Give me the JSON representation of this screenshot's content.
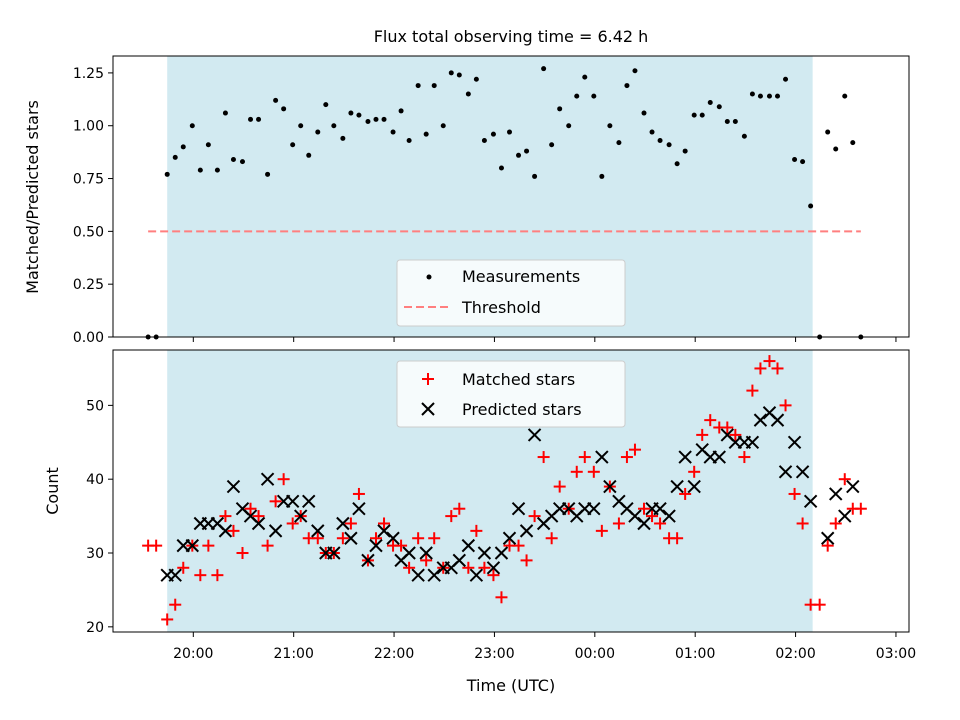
{
  "chart_data": [
    {
      "type": "scatter",
      "title": "Flux total observing time = 6.42 h",
      "xlabel": "",
      "ylabel": "Matched/Predicted stars",
      "x_unit": "UTC hours since 00:00 of first night (times after midnight are +24)",
      "xlim": [
        19.2,
        27.13
      ],
      "ylim": [
        0.0,
        1.33
      ],
      "yticks": [
        "0.00",
        "0.25",
        "0.50",
        "0.75",
        "1.00",
        "1.25"
      ],
      "grid": false,
      "legend_position": "lower-center",
      "shaded_interval": {
        "x0": 19.74,
        "x1": 26.17,
        "color": "#add8e6"
      },
      "threshold": {
        "y": 0.5,
        "x0": 19.55,
        "x1": 26.65,
        "name": "Threshold",
        "color": "#ff7f7f",
        "style": "dashed"
      },
      "series": [
        {
          "name": "Measurements",
          "color": "#000000",
          "marker": "dot",
          "points": [
            [
              19.55,
              0.0
            ],
            [
              19.63,
              0.0
            ],
            [
              19.74,
              0.77
            ],
            [
              19.82,
              0.85
            ],
            [
              19.9,
              0.9
            ],
            [
              19.99,
              1.0
            ],
            [
              20.07,
              0.79
            ],
            [
              20.15,
              0.91
            ],
            [
              20.24,
              0.79
            ],
            [
              20.32,
              1.06
            ],
            [
              20.4,
              0.84
            ],
            [
              20.49,
              0.83
            ],
            [
              20.57,
              1.03
            ],
            [
              20.65,
              1.03
            ],
            [
              20.74,
              0.77
            ],
            [
              20.82,
              1.12
            ],
            [
              20.9,
              1.08
            ],
            [
              20.99,
              0.91
            ],
            [
              21.07,
              1.0
            ],
            [
              21.15,
              0.86
            ],
            [
              21.24,
              0.97
            ],
            [
              21.32,
              1.1
            ],
            [
              21.4,
              1.0
            ],
            [
              21.49,
              0.94
            ],
            [
              21.57,
              1.06
            ],
            [
              21.65,
              1.05
            ],
            [
              21.74,
              1.02
            ],
            [
              21.82,
              1.03
            ],
            [
              21.9,
              1.03
            ],
            [
              21.99,
              0.97
            ],
            [
              22.07,
              1.07
            ],
            [
              22.15,
              0.93
            ],
            [
              22.24,
              1.19
            ],
            [
              22.32,
              0.96
            ],
            [
              22.4,
              1.19
            ],
            [
              22.49,
              1.0
            ],
            [
              22.57,
              1.25
            ],
            [
              22.65,
              1.24
            ],
            [
              22.74,
              1.15
            ],
            [
              22.82,
              1.22
            ],
            [
              22.9,
              0.93
            ],
            [
              22.99,
              0.96
            ],
            [
              23.07,
              0.8
            ],
            [
              23.15,
              0.97
            ],
            [
              23.24,
              0.86
            ],
            [
              23.32,
              0.88
            ],
            [
              23.4,
              0.76
            ],
            [
              23.49,
              1.27
            ],
            [
              23.57,
              0.91
            ],
            [
              23.65,
              1.08
            ],
            [
              23.74,
              1.0
            ],
            [
              23.82,
              1.14
            ],
            [
              23.9,
              1.23
            ],
            [
              23.99,
              1.14
            ],
            [
              24.07,
              0.76
            ],
            [
              24.15,
              1.0
            ],
            [
              24.24,
              0.92
            ],
            [
              24.32,
              1.19
            ],
            [
              24.4,
              1.26
            ],
            [
              24.49,
              1.06
            ],
            [
              24.57,
              0.97
            ],
            [
              24.65,
              0.93
            ],
            [
              24.74,
              0.91
            ],
            [
              24.82,
              0.82
            ],
            [
              24.9,
              0.88
            ],
            [
              24.99,
              1.05
            ],
            [
              25.07,
              1.05
            ],
            [
              25.15,
              1.11
            ],
            [
              25.24,
              1.09
            ],
            [
              25.32,
              1.02
            ],
            [
              25.4,
              1.02
            ],
            [
              25.49,
              0.95
            ],
            [
              25.57,
              1.15
            ],
            [
              25.65,
              1.14
            ],
            [
              25.74,
              1.14
            ],
            [
              25.82,
              1.14
            ],
            [
              25.9,
              1.22
            ],
            [
              25.99,
              0.84
            ],
            [
              26.07,
              0.83
            ],
            [
              26.15,
              0.62
            ],
            [
              26.24,
              0.0
            ],
            [
              26.32,
              0.97
            ],
            [
              26.4,
              0.89
            ],
            [
              26.49,
              1.14
            ],
            [
              26.57,
              0.92
            ],
            [
              26.65,
              0.0
            ]
          ]
        }
      ]
    },
    {
      "type": "scatter",
      "title": "",
      "xlabel": "Time (UTC)",
      "ylabel": "Count",
      "x_unit": "UTC hours since 00:00 of first night (times after midnight are +24)",
      "xlim": [
        19.2,
        27.13
      ],
      "ylim": [
        19.3,
        57.5
      ],
      "yticks": [
        "20",
        "30",
        "40",
        "50"
      ],
      "xticks": [
        "20:00",
        "21:00",
        "22:00",
        "23:00",
        "00:00",
        "01:00",
        "02:00",
        "03:00"
      ],
      "grid": false,
      "legend_position": "upper-center",
      "shaded_interval": {
        "x0": 19.74,
        "x1": 26.17,
        "color": "#add8e6"
      },
      "series": [
        {
          "name": "Matched stars",
          "color": "#ff0000",
          "marker": "plus",
          "points": [
            [
              19.55,
              31
            ],
            [
              19.63,
              31
            ],
            [
              19.74,
              21
            ],
            [
              19.82,
              23
            ],
            [
              19.9,
              28
            ],
            [
              19.99,
              31
            ],
            [
              20.07,
              27
            ],
            [
              20.15,
              31
            ],
            [
              20.24,
              27
            ],
            [
              20.32,
              35
            ],
            [
              20.4,
              33
            ],
            [
              20.49,
              30
            ],
            [
              20.57,
              36
            ],
            [
              20.65,
              35
            ],
            [
              20.74,
              31
            ],
            [
              20.82,
              37
            ],
            [
              20.9,
              40
            ],
            [
              20.99,
              34
            ],
            [
              21.07,
              35
            ],
            [
              21.15,
              32
            ],
            [
              21.24,
              32
            ],
            [
              21.32,
              30
            ],
            [
              21.4,
              30
            ],
            [
              21.49,
              32
            ],
            [
              21.57,
              34
            ],
            [
              21.65,
              38
            ],
            [
              21.74,
              29
            ],
            [
              21.82,
              32
            ],
            [
              21.9,
              34
            ],
            [
              21.99,
              31
            ],
            [
              22.07,
              31
            ],
            [
              22.15,
              28
            ],
            [
              22.24,
              32
            ],
            [
              22.32,
              29
            ],
            [
              22.4,
              32
            ],
            [
              22.49,
              28
            ],
            [
              22.57,
              35
            ],
            [
              22.65,
              36
            ],
            [
              22.74,
              28
            ],
            [
              22.82,
              33
            ],
            [
              22.9,
              28
            ],
            [
              22.99,
              27
            ],
            [
              23.07,
              24
            ],
            [
              23.15,
              31
            ],
            [
              23.24,
              31
            ],
            [
              23.32,
              29
            ],
            [
              23.4,
              35
            ],
            [
              23.49,
              43
            ],
            [
              23.57,
              32
            ],
            [
              23.65,
              39
            ],
            [
              23.74,
              36
            ],
            [
              23.82,
              41
            ],
            [
              23.9,
              43
            ],
            [
              23.99,
              41
            ],
            [
              24.07,
              33
            ],
            [
              24.15,
              39
            ],
            [
              24.24,
              34
            ],
            [
              24.32,
              43
            ],
            [
              24.4,
              44
            ],
            [
              24.49,
              36
            ],
            [
              24.57,
              35
            ],
            [
              24.65,
              34
            ],
            [
              24.74,
              32
            ],
            [
              24.82,
              32
            ],
            [
              24.9,
              38
            ],
            [
              24.99,
              41
            ],
            [
              25.07,
              46
            ],
            [
              25.15,
              48
            ],
            [
              25.24,
              47
            ],
            [
              25.32,
              47
            ],
            [
              25.4,
              46
            ],
            [
              25.49,
              43
            ],
            [
              25.57,
              52
            ],
            [
              25.65,
              55
            ],
            [
              25.74,
              56
            ],
            [
              25.82,
              55
            ],
            [
              25.9,
              50
            ],
            [
              25.99,
              38
            ],
            [
              26.07,
              34
            ],
            [
              26.15,
              23
            ],
            [
              26.24,
              23
            ],
            [
              26.32,
              31
            ],
            [
              26.4,
              34
            ],
            [
              26.49,
              40
            ],
            [
              26.57,
              36
            ],
            [
              26.65,
              36
            ]
          ]
        },
        {
          "name": "Predicted stars",
          "color": "#000000",
          "marker": "x",
          "points": [
            [
              19.74,
              27
            ],
            [
              19.82,
              27
            ],
            [
              19.9,
              31
            ],
            [
              19.99,
              31
            ],
            [
              20.07,
              34
            ],
            [
              20.15,
              34
            ],
            [
              20.24,
              34
            ],
            [
              20.32,
              33
            ],
            [
              20.4,
              39
            ],
            [
              20.49,
              36
            ],
            [
              20.57,
              35
            ],
            [
              20.65,
              34
            ],
            [
              20.74,
              40
            ],
            [
              20.82,
              33
            ],
            [
              20.9,
              37
            ],
            [
              20.99,
              37
            ],
            [
              21.07,
              35
            ],
            [
              21.15,
              37
            ],
            [
              21.24,
              33
            ],
            [
              21.32,
              30
            ],
            [
              21.4,
              30
            ],
            [
              21.49,
              34
            ],
            [
              21.57,
              32
            ],
            [
              21.65,
              36
            ],
            [
              21.74,
              29
            ],
            [
              21.82,
              31
            ],
            [
              21.9,
              33
            ],
            [
              21.99,
              32
            ],
            [
              22.07,
              29
            ],
            [
              22.15,
              30
            ],
            [
              22.24,
              27
            ],
            [
              22.32,
              30
            ],
            [
              22.4,
              27
            ],
            [
              22.49,
              28
            ],
            [
              22.57,
              28
            ],
            [
              22.65,
              29
            ],
            [
              22.74,
              31
            ],
            [
              22.82,
              27
            ],
            [
              22.9,
              30
            ],
            [
              22.99,
              28
            ],
            [
              23.07,
              30
            ],
            [
              23.15,
              32
            ],
            [
              23.24,
              36
            ],
            [
              23.32,
              33
            ],
            [
              23.4,
              46
            ],
            [
              23.49,
              34
            ],
            [
              23.57,
              35
            ],
            [
              23.65,
              36
            ],
            [
              23.74,
              36
            ],
            [
              23.82,
              35
            ],
            [
              23.9,
              36
            ],
            [
              23.99,
              36
            ],
            [
              24.07,
              43
            ],
            [
              24.15,
              39
            ],
            [
              24.24,
              37
            ],
            [
              24.32,
              36
            ],
            [
              24.4,
              35
            ],
            [
              24.49,
              34
            ],
            [
              24.57,
              36
            ],
            [
              24.65,
              36
            ],
            [
              24.74,
              35
            ],
            [
              24.82,
              39
            ],
            [
              24.9,
              43
            ],
            [
              24.99,
              39
            ],
            [
              25.07,
              44
            ],
            [
              25.15,
              43
            ],
            [
              25.24,
              43
            ],
            [
              25.32,
              46
            ],
            [
              25.4,
              45
            ],
            [
              25.49,
              45
            ],
            [
              25.57,
              45
            ],
            [
              25.65,
              48
            ],
            [
              25.74,
              49
            ],
            [
              25.82,
              48
            ],
            [
              25.9,
              41
            ],
            [
              25.99,
              45
            ],
            [
              26.07,
              41
            ],
            [
              26.15,
              37
            ],
            [
              26.32,
              32
            ],
            [
              26.4,
              38
            ],
            [
              26.49,
              35
            ],
            [
              26.57,
              39
            ]
          ]
        }
      ]
    }
  ]
}
